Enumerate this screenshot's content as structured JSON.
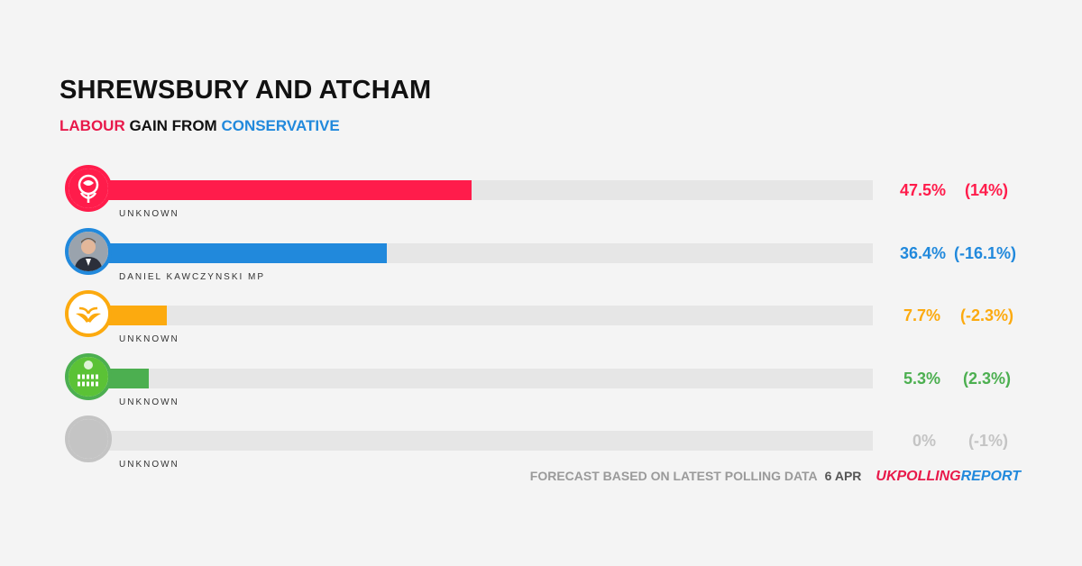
{
  "header": {
    "title": "SHREWSBURY AND ATCHAM",
    "gain_party": "LABOUR",
    "gain_text": " GAIN FROM ",
    "from_party": "CONSERVATIVE"
  },
  "chart_data": {
    "type": "bar",
    "orientation": "horizontal",
    "xlim": [
      0,
      100
    ],
    "rows": [
      {
        "party_icon": "labour-rose-icon",
        "candidate": "UNKNOWN",
        "value": 47.5,
        "value_label": "47.5%",
        "change_label": "(14%)",
        "color": "#ff1c4b"
      },
      {
        "party_icon": "candidate-photo-icon",
        "candidate": "DANIEL KAWCZYNSKI MP",
        "value": 36.4,
        "value_label": "36.4%",
        "change_label": "(-16.1%)",
        "color": "#2189dc"
      },
      {
        "party_icon": "libdem-bird-icon",
        "candidate": "UNKNOWN",
        "value": 7.7,
        "value_label": "7.7%",
        "change_label": "(-2.3%)",
        "color": "#fcaa0f"
      },
      {
        "party_icon": "green-party-icon",
        "candidate": "UNKNOWN",
        "value": 5.3,
        "value_label": "5.3%",
        "change_label": "(2.3%)",
        "color": "#4caf50"
      },
      {
        "party_icon": "blank-avatar-icon",
        "candidate": "UNKNOWN",
        "value": 0,
        "value_label": "0%",
        "change_label": "(-1%)",
        "color": "#c4c4c4"
      }
    ]
  },
  "footer": {
    "text": "FORECAST BASED ON LATEST POLLING DATA",
    "date": "6 APR",
    "logo_uk": "UK",
    "logo_polling": "POLLING",
    "logo_report": "REPORT"
  }
}
